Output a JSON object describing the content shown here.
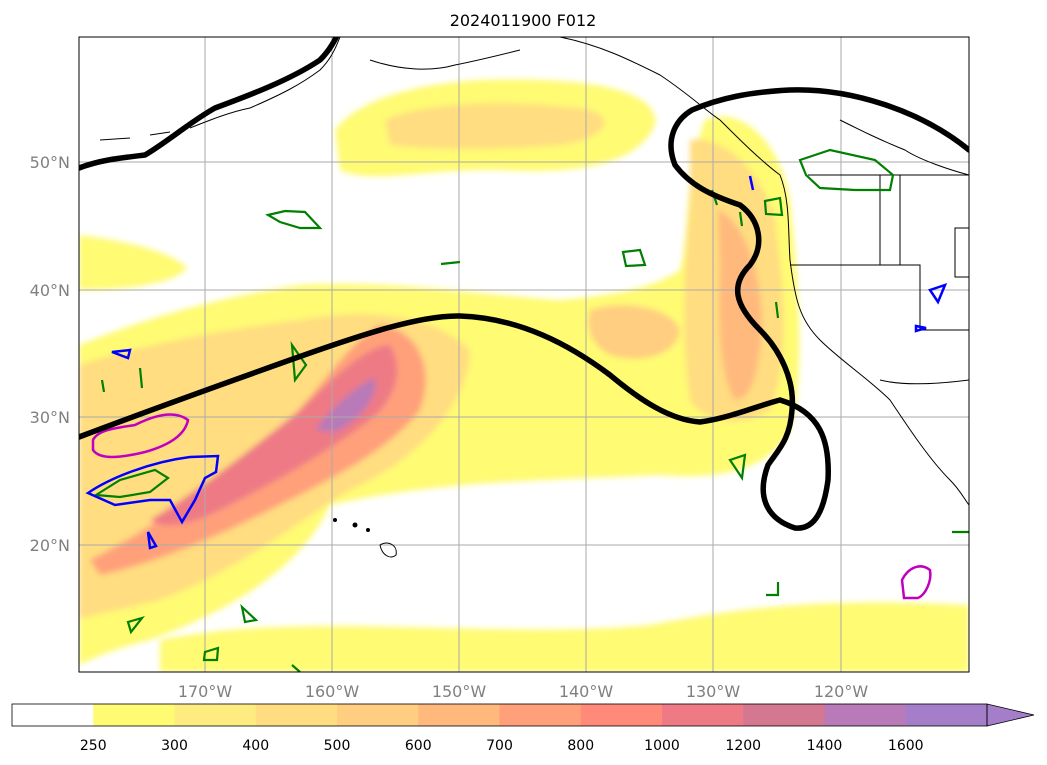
{
  "map": {
    "title": "2024011900 F012",
    "lat_labels": [
      "50°N",
      "40°N",
      "30°N",
      "20°N"
    ],
    "lon_labels": [
      "170°W",
      "160°W",
      "150°W",
      "140°W",
      "130°W",
      "120°W"
    ]
  },
  "colorbar": {
    "ticks": [
      "250",
      "300",
      "400",
      "500",
      "600",
      "700",
      "800",
      "1000",
      "1200",
      "1400",
      "1600"
    ],
    "colors": [
      "#ffffff",
      "#fffb73",
      "#ffec80",
      "#ffdd80",
      "#ffce80",
      "#ffb97d",
      "#ffa07a",
      "#ff8a7a",
      "#ee7a85",
      "#d47890",
      "#b87ab8",
      "#a57ec9"
    ]
  },
  "colors": {
    "contour_black": "#000000",
    "contour_green": "#008000",
    "contour_blue": "#0000ff",
    "contour_magenta": "#c000c0",
    "grid": "#aaaaaa",
    "label_grey": "#808080"
  }
}
